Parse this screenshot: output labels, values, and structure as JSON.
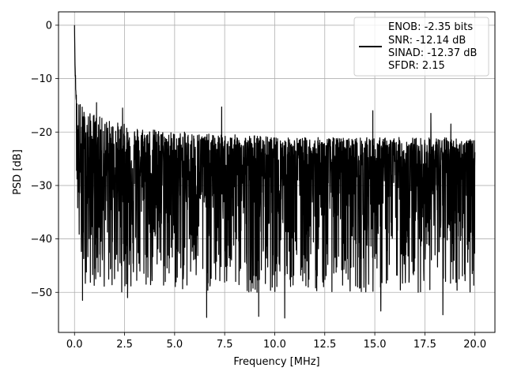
{
  "chart_data": {
    "type": "line",
    "xlabel": "Frequency [MHz]",
    "ylabel": "PSD [dB]",
    "xlim": [
      -0.8,
      21.0
    ],
    "ylim": [
      -57.5,
      2.5
    ],
    "xticks": [
      0.0,
      2.5,
      5.0,
      7.5,
      10.0,
      12.5,
      15.0,
      17.5,
      20.0
    ],
    "xtick_labels": [
      "0.0",
      "2.5",
      "5.0",
      "7.5",
      "10.0",
      "12.5",
      "15.0",
      "17.5",
      "20.0"
    ],
    "yticks": [
      0,
      -10,
      -20,
      -30,
      -40,
      -50
    ],
    "ytick_labels": [
      "0",
      "−10",
      "−20",
      "−30",
      "−40",
      "−50"
    ],
    "grid": true,
    "legend_placement": "upper-right",
    "line_color": "#000000",
    "series": [
      {
        "legend_lines": [
          "ENOB: -2.35 bits",
          "SNR: -12.14 dB",
          "SINAD: -12.37 dB",
          "SFDR: 2.15"
        ],
        "x_range": [
          0.0,
          20.0
        ],
        "x": [
          0.0,
          0.02,
          0.04,
          0.06,
          0.08,
          0.1,
          0.12,
          0.15,
          0.2,
          0.25,
          0.3,
          0.4,
          0.5,
          0.6,
          0.8,
          1.0,
          1.2,
          1.5,
          2.0,
          2.5,
          3.0,
          3.5,
          4.0,
          5.0,
          6.0,
          7.0,
          8.0,
          9.0,
          10.0,
          11.0,
          12.0,
          13.0,
          14.0,
          15.0,
          16.0,
          17.0,
          18.0,
          19.0,
          20.0
        ],
        "y_upper": [
          0.0,
          -5.0,
          -8.0,
          -10.0,
          -11.0,
          -12.0,
          -12.5,
          -13.0,
          -13.5,
          -14.0,
          -14.5,
          -15.0,
          -16.0,
          -16.0,
          -16.5,
          -16.5,
          -17.0,
          -17.5,
          -18.0,
          -18.5,
          -19.0,
          -19.0,
          -19.5,
          -20.0,
          -20.0,
          -20.5,
          -20.5,
          -20.5,
          -21.0,
          -21.0,
          -21.0,
          -21.0,
          -21.0,
          -21.0,
          -21.0,
          -21.0,
          -21.0,
          -21.0,
          -21.5
        ],
        "y_lower": [
          -2.0,
          -8.0,
          -12.0,
          -15.0,
          -18.0,
          -22.0,
          -28.0,
          -35.0,
          -40.0,
          -44.0,
          -46.0,
          -48.0,
          -48.0,
          -49.0,
          -49.0,
          -49.0,
          -49.5,
          -49.5,
          -50.0,
          -50.0,
          -50.0,
          -50.0,
          -50.0,
          -50.0,
          -50.0,
          -50.0,
          -50.0,
          -50.0,
          -50.0,
          -50.0,
          -50.0,
          -50.0,
          -50.0,
          -50.0,
          -50.0,
          -50.0,
          -50.0,
          -50.0,
          -50.0
        ],
        "y_mean": -30,
        "spikes": [
          {
            "x": 0.4,
            "y": -51.5
          },
          {
            "x": 2.65,
            "y": -51.0
          },
          {
            "x": 6.6,
            "y": -54.7
          },
          {
            "x": 9.2,
            "y": -54.5
          },
          {
            "x": 10.5,
            "y": -54.8
          },
          {
            "x": 15.3,
            "y": -53.5
          },
          {
            "x": 18.4,
            "y": -54.2
          },
          {
            "x": 1.1,
            "y": -14.5
          },
          {
            "x": 2.4,
            "y": -15.5
          },
          {
            "x": 7.35,
            "y": -15.3
          },
          {
            "x": 14.9,
            "y": -16.0
          },
          {
            "x": 17.8,
            "y": -16.5
          },
          {
            "x": 18.8,
            "y": -18.5
          }
        ]
      }
    ]
  }
}
